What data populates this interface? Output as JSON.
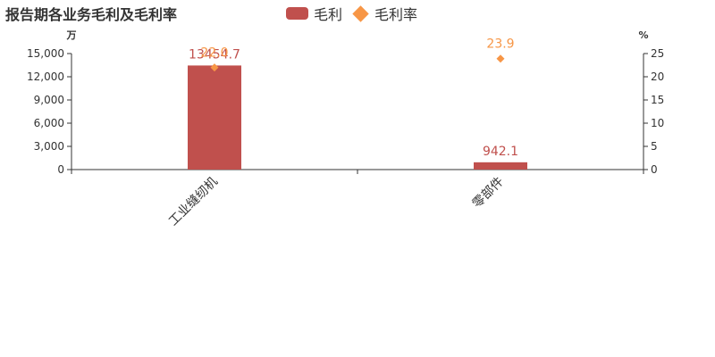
{
  "chart_data": {
    "type": "bar",
    "title": "报告期各业务毛利及毛利率",
    "categories": [
      "工业缝纫机",
      "零部件"
    ],
    "series": [
      {
        "name": "毛利",
        "axis": "left",
        "mark": "bar",
        "values": [
          13454.7,
          942.1
        ],
        "labels": [
          "13454.7",
          "942.1"
        ],
        "color": "#c0504d"
      },
      {
        "name": "毛利率",
        "axis": "right",
        "mark": "diamond",
        "values": [
          22.0,
          23.9
        ],
        "labels": [
          "22.0",
          "23.9"
        ],
        "color": "#f79646"
      }
    ],
    "y_left": {
      "unit": "万",
      "ylim": [
        0,
        15000
      ],
      "ticks": [
        "0",
        "3,000",
        "6,000",
        "9,000",
        "12,000",
        "15,000"
      ]
    },
    "y_right": {
      "unit": "%",
      "ylim": [
        0,
        25
      ],
      "ticks": [
        "0",
        "5",
        "10",
        "15",
        "20",
        "25"
      ]
    },
    "grid": false,
    "legend_position": "top"
  }
}
